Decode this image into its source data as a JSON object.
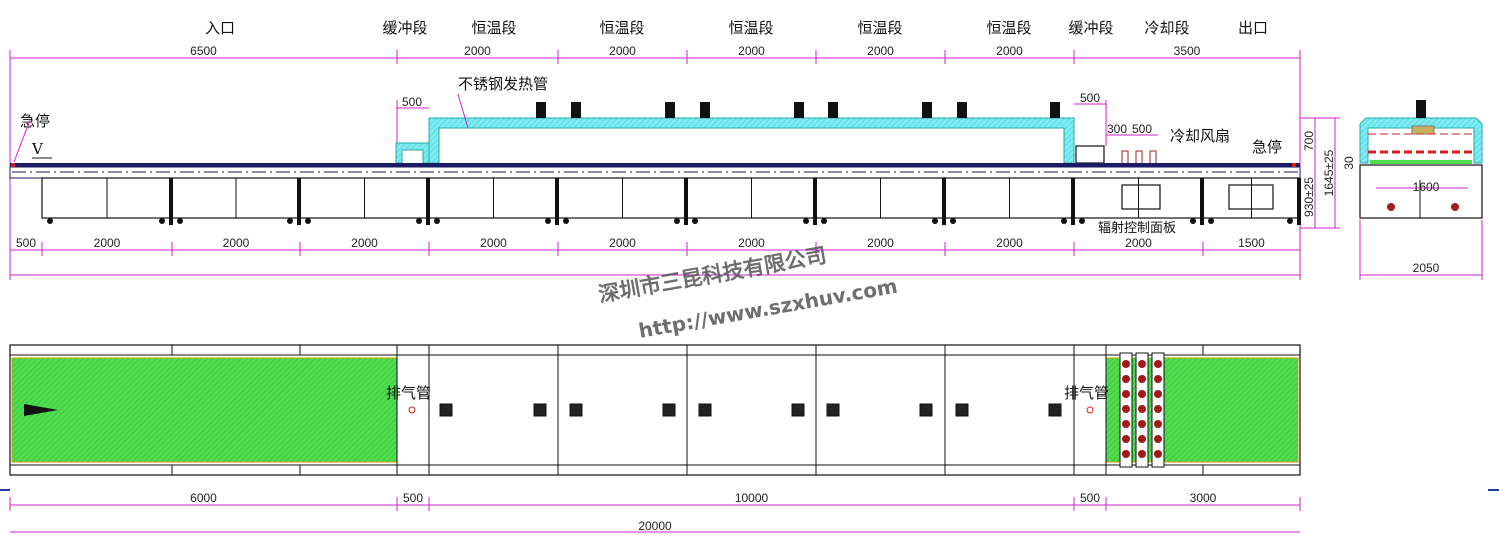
{
  "zone_labels": [
    {
      "label": "入口",
      "cx": 220
    },
    {
      "label": "缓冲段",
      "cx": 405
    },
    {
      "label": "恒温段",
      "cx": 494
    },
    {
      "label": "恒温段",
      "cx": 622
    },
    {
      "label": "恒温段",
      "cx": 751
    },
    {
      "label": "恒温段",
      "cx": 880
    },
    {
      "label": "恒温段",
      "cx": 1009
    },
    {
      "label": "缓冲段",
      "cx": 1091
    },
    {
      "label": "冷却段",
      "cx": 1167
    },
    {
      "label": "出口",
      "cx": 1253
    }
  ],
  "top_dims": [
    "6500",
    "2000",
    "2000",
    "2000",
    "2000",
    "2000",
    "3500"
  ],
  "side_dims": [
    "500",
    "2000",
    "2000",
    "2000",
    "2000",
    "2000",
    "2000",
    "2000",
    "2000",
    "2000",
    "1500"
  ],
  "plan_dims": [
    "6000",
    "500",
    "10000",
    "500",
    "3000"
  ],
  "overall_length": "20000",
  "annotations": {
    "heater_tube": "不锈钢发热管",
    "cooling_fan": "冷却风扇",
    "estop_left": "急停",
    "estop_right": "急停",
    "direction": "V",
    "control_panel": "辐射控制面板",
    "buffer_width": "500",
    "exit_buffer_width": "500",
    "fan_spacing_1": "300",
    "fan_spacing_2": "500",
    "exhaust_left": "排气管",
    "exhaust_right": "排气管"
  },
  "height_dims": {
    "hood": "700",
    "conveyor": "930±25",
    "total": "1645±25",
    "offset": "30"
  },
  "end_view": {
    "inner_width": "1600",
    "outer_width": "2050"
  },
  "watermark": {
    "company": "深圳市三昆科技有限公司",
    "url": "http://www.szxhuv.com"
  },
  "colors": {
    "dimension": "#d020d0",
    "heater": "#5fe0e8",
    "belt": "#3ad63a",
    "conveyor": "#1a1a66",
    "hot_line": "#d02020"
  }
}
